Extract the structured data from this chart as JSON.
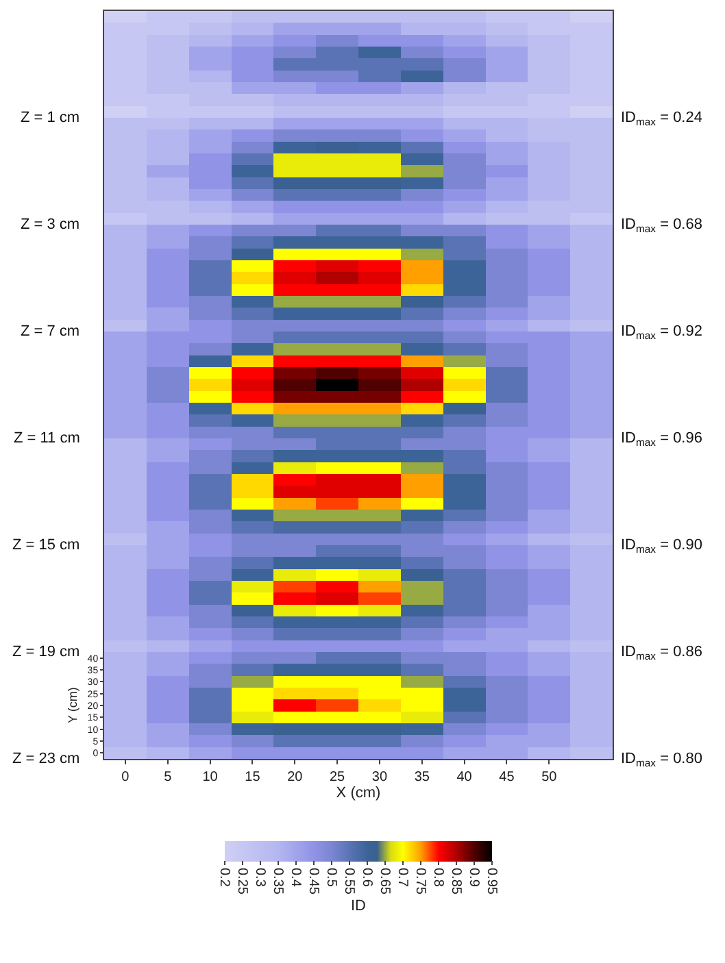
{
  "chart_data": {
    "type": "heatmap",
    "categories": [
      "0",
      "5",
      "10",
      "15",
      "20",
      "25",
      "30",
      "35",
      "40",
      "45",
      "50",
      null
    ],
    "y_categories": [
      null,
      null,
      null,
      null,
      null,
      null,
      null,
      null,
      null,
      null,
      null,
      null,
      null,
      null,
      null,
      null,
      null,
      null,
      null,
      null,
      null,
      null,
      null,
      null,
      null,
      null,
      null,
      null,
      null,
      null,
      null,
      null,
      null,
      null,
      null,
      null,
      null,
      null,
      null,
      null,
      null,
      null,
      null,
      null,
      null,
      null,
      null,
      null,
      null,
      null,
      null,
      null,
      null,
      null,
      "40",
      "35",
      "30",
      "25",
      "20",
      "15",
      "10",
      "5",
      "0"
    ],
    "cells": [
      [
        0.2,
        0.25,
        0.25,
        0.3,
        0.3,
        0.3,
        0.3,
        0.3,
        0.3,
        0.25,
        0.25,
        0.2
      ],
      [
        0.25,
        0.25,
        0.3,
        0.35,
        0.4,
        0.4,
        0.4,
        0.35,
        0.35,
        0.3,
        0.25,
        0.25
      ],
      [
        0.25,
        0.3,
        0.35,
        0.4,
        0.45,
        0.5,
        0.45,
        0.45,
        0.4,
        0.35,
        0.3,
        0.25
      ],
      [
        0.25,
        0.3,
        0.4,
        0.45,
        0.5,
        0.55,
        0.6,
        0.5,
        0.45,
        0.4,
        0.3,
        0.25
      ],
      [
        0.25,
        0.3,
        0.4,
        0.45,
        0.55,
        0.55,
        0.55,
        0.55,
        0.5,
        0.4,
        0.3,
        0.25
      ],
      [
        0.25,
        0.3,
        0.35,
        0.45,
        0.5,
        0.5,
        0.55,
        0.6,
        0.5,
        0.4,
        0.3,
        0.25
      ],
      [
        0.25,
        0.3,
        0.3,
        0.4,
        0.4,
        0.45,
        0.45,
        0.4,
        0.35,
        0.3,
        0.3,
        0.25
      ],
      [
        0.25,
        0.25,
        0.3,
        0.3,
        0.35,
        0.35,
        0.35,
        0.35,
        0.3,
        0.3,
        0.25,
        0.25
      ],
      [
        0.2,
        0.25,
        0.25,
        0.25,
        0.3,
        0.3,
        0.3,
        0.3,
        0.25,
        0.25,
        0.25,
        0.2
      ],
      [
        0.3,
        0.3,
        0.35,
        0.35,
        0.4,
        0.4,
        0.4,
        0.4,
        0.35,
        0.35,
        0.3,
        0.3
      ],
      [
        0.3,
        0.35,
        0.4,
        0.45,
        0.5,
        0.5,
        0.5,
        0.45,
        0.4,
        0.35,
        0.3,
        0.3
      ],
      [
        0.3,
        0.35,
        0.4,
        0.5,
        0.6,
        0.62,
        0.6,
        0.55,
        0.45,
        0.4,
        0.35,
        0.3
      ],
      [
        0.3,
        0.35,
        0.45,
        0.55,
        0.68,
        0.68,
        0.68,
        0.6,
        0.5,
        0.4,
        0.35,
        0.3
      ],
      [
        0.3,
        0.4,
        0.45,
        0.6,
        0.68,
        0.68,
        0.68,
        0.65,
        0.5,
        0.45,
        0.35,
        0.3
      ],
      [
        0.3,
        0.35,
        0.45,
        0.55,
        0.62,
        0.62,
        0.62,
        0.6,
        0.5,
        0.4,
        0.35,
        0.3
      ],
      [
        0.3,
        0.35,
        0.4,
        0.5,
        0.55,
        0.55,
        0.55,
        0.5,
        0.45,
        0.4,
        0.35,
        0.3
      ],
      [
        0.3,
        0.3,
        0.35,
        0.4,
        0.45,
        0.45,
        0.45,
        0.45,
        0.4,
        0.35,
        0.3,
        0.3
      ],
      [
        0.25,
        0.3,
        0.3,
        0.35,
        0.4,
        0.4,
        0.4,
        0.4,
        0.35,
        0.3,
        0.3,
        0.25
      ],
      [
        0.35,
        0.4,
        0.45,
        0.5,
        0.5,
        0.55,
        0.55,
        0.5,
        0.5,
        0.45,
        0.4,
        0.35
      ],
      [
        0.35,
        0.4,
        0.5,
        0.55,
        0.6,
        0.6,
        0.6,
        0.6,
        0.55,
        0.45,
        0.4,
        0.35
      ],
      [
        0.35,
        0.45,
        0.5,
        0.62,
        0.7,
        0.7,
        0.7,
        0.65,
        0.55,
        0.5,
        0.45,
        0.35
      ],
      [
        0.35,
        0.45,
        0.55,
        0.7,
        0.8,
        0.82,
        0.8,
        0.75,
        0.6,
        0.5,
        0.45,
        0.35
      ],
      [
        0.35,
        0.45,
        0.55,
        0.72,
        0.82,
        0.85,
        0.82,
        0.75,
        0.6,
        0.5,
        0.45,
        0.35
      ],
      [
        0.35,
        0.45,
        0.55,
        0.7,
        0.8,
        0.8,
        0.8,
        0.72,
        0.6,
        0.5,
        0.45,
        0.35
      ],
      [
        0.35,
        0.45,
        0.5,
        0.6,
        0.65,
        0.65,
        0.65,
        0.62,
        0.55,
        0.5,
        0.4,
        0.35
      ],
      [
        0.35,
        0.4,
        0.5,
        0.55,
        0.6,
        0.6,
        0.6,
        0.55,
        0.5,
        0.45,
        0.4,
        0.35
      ],
      [
        0.3,
        0.4,
        0.45,
        0.5,
        0.5,
        0.5,
        0.5,
        0.5,
        0.45,
        0.4,
        0.35,
        0.3
      ],
      [
        0.4,
        0.45,
        0.45,
        0.5,
        0.55,
        0.55,
        0.55,
        0.55,
        0.5,
        0.45,
        0.45,
        0.4
      ],
      [
        0.4,
        0.45,
        0.5,
        0.6,
        0.65,
        0.65,
        0.65,
        0.6,
        0.55,
        0.5,
        0.45,
        0.4
      ],
      [
        0.4,
        0.45,
        0.6,
        0.72,
        0.8,
        0.8,
        0.8,
        0.75,
        0.65,
        0.5,
        0.45,
        0.4
      ],
      [
        0.4,
        0.5,
        0.7,
        0.8,
        0.88,
        0.9,
        0.88,
        0.82,
        0.7,
        0.55,
        0.45,
        0.4
      ],
      [
        0.4,
        0.5,
        0.72,
        0.82,
        0.9,
        0.95,
        0.9,
        0.85,
        0.72,
        0.55,
        0.45,
        0.4
      ],
      [
        0.4,
        0.5,
        0.7,
        0.8,
        0.88,
        0.88,
        0.88,
        0.8,
        0.7,
        0.55,
        0.45,
        0.4
      ],
      [
        0.4,
        0.45,
        0.6,
        0.72,
        0.75,
        0.75,
        0.75,
        0.72,
        0.62,
        0.5,
        0.45,
        0.4
      ],
      [
        0.4,
        0.45,
        0.55,
        0.6,
        0.65,
        0.65,
        0.65,
        0.6,
        0.55,
        0.5,
        0.45,
        0.4
      ],
      [
        0.4,
        0.45,
        0.5,
        0.5,
        0.55,
        0.55,
        0.55,
        0.55,
        0.5,
        0.45,
        0.45,
        0.4
      ],
      [
        0.35,
        0.4,
        0.45,
        0.5,
        0.5,
        0.55,
        0.55,
        0.5,
        0.5,
        0.45,
        0.4,
        0.35
      ],
      [
        0.35,
        0.4,
        0.5,
        0.55,
        0.6,
        0.6,
        0.6,
        0.6,
        0.55,
        0.45,
        0.4,
        0.35
      ],
      [
        0.35,
        0.45,
        0.5,
        0.6,
        0.68,
        0.7,
        0.7,
        0.65,
        0.55,
        0.5,
        0.45,
        0.35
      ],
      [
        0.35,
        0.45,
        0.55,
        0.72,
        0.8,
        0.82,
        0.82,
        0.75,
        0.6,
        0.5,
        0.45,
        0.35
      ],
      [
        0.35,
        0.45,
        0.55,
        0.72,
        0.82,
        0.82,
        0.82,
        0.75,
        0.6,
        0.5,
        0.45,
        0.35
      ],
      [
        0.35,
        0.45,
        0.55,
        0.7,
        0.75,
        0.78,
        0.75,
        0.7,
        0.6,
        0.5,
        0.45,
        0.35
      ],
      [
        0.35,
        0.45,
        0.5,
        0.6,
        0.65,
        0.65,
        0.65,
        0.6,
        0.55,
        0.5,
        0.4,
        0.35
      ],
      [
        0.35,
        0.4,
        0.5,
        0.55,
        0.58,
        0.58,
        0.58,
        0.55,
        0.5,
        0.45,
        0.4,
        0.35
      ],
      [
        0.3,
        0.4,
        0.45,
        0.5,
        0.5,
        0.5,
        0.5,
        0.5,
        0.45,
        0.4,
        0.35,
        0.3
      ],
      [
        0.35,
        0.4,
        0.45,
        0.5,
        0.5,
        0.55,
        0.55,
        0.5,
        0.5,
        0.45,
        0.4,
        0.35
      ],
      [
        0.35,
        0.4,
        0.5,
        0.55,
        0.6,
        0.6,
        0.6,
        0.55,
        0.5,
        0.45,
        0.4,
        0.35
      ],
      [
        0.35,
        0.45,
        0.5,
        0.6,
        0.68,
        0.7,
        0.68,
        0.62,
        0.55,
        0.5,
        0.45,
        0.35
      ],
      [
        0.35,
        0.45,
        0.55,
        0.68,
        0.78,
        0.8,
        0.75,
        0.65,
        0.55,
        0.5,
        0.45,
        0.35
      ],
      [
        0.35,
        0.45,
        0.55,
        0.7,
        0.8,
        0.82,
        0.78,
        0.65,
        0.55,
        0.5,
        0.45,
        0.35
      ],
      [
        0.35,
        0.45,
        0.5,
        0.62,
        0.68,
        0.7,
        0.68,
        0.6,
        0.55,
        0.5,
        0.4,
        0.35
      ],
      [
        0.35,
        0.4,
        0.5,
        0.55,
        0.6,
        0.6,
        0.6,
        0.55,
        0.5,
        0.45,
        0.4,
        0.35
      ],
      [
        0.35,
        0.4,
        0.45,
        0.5,
        0.55,
        0.55,
        0.55,
        0.5,
        0.45,
        0.4,
        0.4,
        0.35
      ],
      [
        0.3,
        0.35,
        0.4,
        0.45,
        0.45,
        0.45,
        0.45,
        0.45,
        0.4,
        0.4,
        0.35,
        0.3
      ],
      [
        0.35,
        0.4,
        0.45,
        0.5,
        0.5,
        0.55,
        0.55,
        0.5,
        0.5,
        0.45,
        0.4,
        0.35
      ],
      [
        0.35,
        0.4,
        0.5,
        0.55,
        0.6,
        0.6,
        0.6,
        0.55,
        0.5,
        0.45,
        0.4,
        0.35
      ],
      [
        0.35,
        0.45,
        0.5,
        0.65,
        0.7,
        0.7,
        0.7,
        0.65,
        0.55,
        0.5,
        0.45,
        0.35
      ],
      [
        0.35,
        0.45,
        0.55,
        0.7,
        0.72,
        0.72,
        0.7,
        0.7,
        0.6,
        0.5,
        0.45,
        0.35
      ],
      [
        0.35,
        0.45,
        0.55,
        0.7,
        0.8,
        0.78,
        0.72,
        0.7,
        0.6,
        0.5,
        0.45,
        0.35
      ],
      [
        0.35,
        0.45,
        0.55,
        0.68,
        0.7,
        0.7,
        0.7,
        0.68,
        0.55,
        0.5,
        0.45,
        0.35
      ],
      [
        0.35,
        0.4,
        0.5,
        0.6,
        0.62,
        0.62,
        0.62,
        0.6,
        0.5,
        0.45,
        0.4,
        0.35
      ],
      [
        0.35,
        0.4,
        0.45,
        0.5,
        0.55,
        0.55,
        0.55,
        0.5,
        0.45,
        0.4,
        0.4,
        0.35
      ],
      [
        0.3,
        0.35,
        0.4,
        0.45,
        0.45,
        0.45,
        0.45,
        0.45,
        0.4,
        0.4,
        0.35,
        0.3
      ]
    ],
    "xlabel": "X (cm)",
    "ylabel": "Y (cm)",
    "clabel": "ID",
    "clim": [
      0.2,
      0.95
    ],
    "cticks": [
      0.2,
      0.25,
      0.3,
      0.35,
      0.4,
      0.45,
      0.5,
      0.55,
      0.6,
      0.65,
      0.7,
      0.75,
      0.8,
      0.85,
      0.9,
      0.95
    ],
    "annotations": [
      "Z = 1 cm",
      "ID$_{max}$ = 0.24",
      "Z = 3 cm",
      "ID$_{max}$ = 0.68",
      "Z = 7 cm",
      "ID$_{max}$ = 0.92",
      "Z = 11 cm",
      "ID$_{max}$ = 0.96",
      "Z = 15 cm",
      "ID$_{max}$ = 0.90",
      "Z = 19 cm",
      "ID$_{max}$ = 0.86",
      "Z = 23 cm",
      "ID$_{max}$ = 0.80"
    ]
  }
}
